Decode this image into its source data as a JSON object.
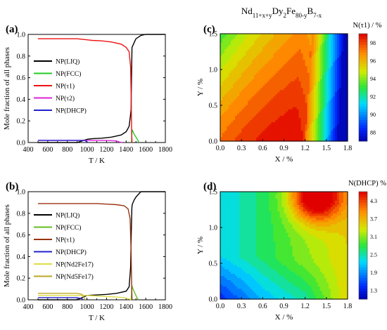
{
  "figure": {
    "title_base": "Nd",
    "title_sub1": "11+x+y",
    "title_mid1": "Dy",
    "title_sub2": "2",
    "title_mid2": "Fe",
    "title_sub3": "80-y",
    "title_mid3": "B",
    "title_sub4": "7-x"
  },
  "colors": {
    "LIQ": "#000000",
    "FCC": "#22cc22",
    "tau1_a": "#ee1111",
    "tau2": "#dd22dd",
    "DHCP": "#2222cc",
    "FCC_b": "#66bb22",
    "tau1_b": "#993311",
    "Nd2Fe17": "#dddd44",
    "Nd5Fe17": "#bbaa22"
  },
  "chart_data": [
    {
      "panel": "(a)",
      "type": "line",
      "xlabel": "T / K",
      "ylabel": "Mole fraction of all phases",
      "xlim": [
        400,
        1800
      ],
      "ylim": [
        0,
        1.0
      ],
      "xticks": [
        "400",
        "600",
        "800",
        "1000",
        "1200",
        "1400",
        "1600",
        "1800"
      ],
      "yticks": [
        "0.0",
        "0.2",
        "0.4",
        "0.6",
        "0.8",
        "1.0"
      ],
      "legend_position": "center-left",
      "series": [
        {
          "name": "NP(LIQ)",
          "color_key": "LIQ",
          "x": [
            500,
            700,
            900,
            1000,
            1050,
            1150,
            1250,
            1350,
            1400,
            1430,
            1450,
            1455,
            1460,
            1470,
            1480,
            1490,
            1500,
            1550,
            1600,
            1700,
            1800
          ],
          "y": [
            0.0,
            0.0,
            0.0,
            0.03,
            0.035,
            0.04,
            0.05,
            0.07,
            0.1,
            0.15,
            0.3,
            0.6,
            0.88,
            0.9,
            0.92,
            0.94,
            0.96,
            0.99,
            1.0,
            1.0,
            1.0
          ]
        },
        {
          "name": "NP(FCC)",
          "color_key": "FCC",
          "x": [
            1455,
            1460,
            1470,
            1480,
            1500,
            1520,
            1530
          ],
          "y": [
            0.0,
            0.12,
            0.1,
            0.08,
            0.05,
            0.02,
            0.0
          ]
        },
        {
          "name": "NP(τ1)",
          "color_key": "tau1_a",
          "x": [
            500,
            700,
            900,
            1000,
            1050,
            1150,
            1250,
            1350,
            1400,
            1430,
            1445,
            1452,
            1456,
            1460
          ],
          "y": [
            0.96,
            0.96,
            0.96,
            0.95,
            0.945,
            0.94,
            0.93,
            0.91,
            0.88,
            0.84,
            0.7,
            0.4,
            0.1,
            0.0
          ]
        },
        {
          "name": "NP(τ2)",
          "color_key": "tau2",
          "x": [
            500,
            900,
            1000,
            1100,
            1200,
            1300,
            1330,
            1360
          ],
          "y": [
            0.02,
            0.02,
            0.02,
            0.02,
            0.02,
            0.015,
            0.005,
            0.0
          ]
        },
        {
          "name": "NP(DHCP)",
          "color_key": "DHCP",
          "x": [
            500,
            800,
            980,
            1000,
            1010
          ],
          "y": [
            0.02,
            0.02,
            0.02,
            0.005,
            0.0
          ]
        }
      ]
    },
    {
      "panel": "(b)",
      "type": "line",
      "xlabel": "T / K",
      "ylabel": "Mole fraction of all phases",
      "xlim": [
        400,
        1800
      ],
      "ylim": [
        0,
        1.0
      ],
      "xticks": [
        "400",
        "600",
        "800",
        "1000",
        "1200",
        "1400",
        "1600",
        "1800"
      ],
      "yticks": [
        "0.0",
        "0.2",
        "0.4",
        "0.6",
        "0.8",
        "1.0"
      ],
      "legend_position": "center-left",
      "series": [
        {
          "name": "NP(LIQ)",
          "color_key": "LIQ",
          "x": [
            500,
            900,
            950,
            1000,
            1100,
            1200,
            1300,
            1400,
            1430,
            1445,
            1452,
            1458,
            1462,
            1480,
            1500,
            1550,
            1600,
            1800
          ],
          "y": [
            0.0,
            0.0,
            0.02,
            0.04,
            0.045,
            0.05,
            0.06,
            0.08,
            0.12,
            0.3,
            0.6,
            0.85,
            0.88,
            0.92,
            0.95,
            1.0,
            1.0,
            1.0
          ]
        },
        {
          "name": "NP(FCC)",
          "color_key": "FCC_b",
          "x": [
            1452,
            1460,
            1470,
            1490,
            1510,
            1525
          ],
          "y": [
            0.0,
            0.13,
            0.1,
            0.06,
            0.02,
            0.0
          ]
        },
        {
          "name": "NP(τ1)",
          "color_key": "tau1_b",
          "x": [
            500,
            900,
            1000,
            1100,
            1200,
            1300,
            1380,
            1420,
            1440,
            1450,
            1456,
            1460
          ],
          "y": [
            0.89,
            0.89,
            0.89,
            0.89,
            0.885,
            0.88,
            0.87,
            0.84,
            0.75,
            0.45,
            0.15,
            0.0
          ]
        },
        {
          "name": "NP(DHCP)",
          "color_key": "DHCP",
          "x": [
            500,
            900,
            950,
            960
          ],
          "y": [
            0.02,
            0.02,
            0.01,
            0.0
          ]
        },
        {
          "name": "NP(Nd2Fe17)",
          "color_key": "Nd2Fe17",
          "x": [
            500,
            900,
            1000,
            1100,
            1200,
            1300,
            1380,
            1420,
            1440,
            1450
          ],
          "y": [
            0.04,
            0.04,
            0.04,
            0.035,
            0.03,
            0.025,
            0.02,
            0.01,
            0.005,
            0.0
          ]
        },
        {
          "name": "NP(Nd5Fe17)",
          "color_key": "Nd5Fe17",
          "x": [
            500,
            900,
            950,
            970,
            980
          ],
          "y": [
            0.06,
            0.06,
            0.05,
            0.02,
            0.0
          ]
        }
      ]
    },
    {
      "panel": "(c)",
      "type": "heatmap",
      "xlabel": "X / %",
      "ylabel": "Y / %",
      "colorbar_title": "N(τ1) / %",
      "xlim": [
        0,
        1.8
      ],
      "ylim": [
        0,
        1.5
      ],
      "xticks": [
        "0.0",
        "0.3",
        "0.6",
        "0.9",
        "1.2",
        "1.5",
        "1.8"
      ],
      "yticks": [
        "0.0",
        "0.5",
        "1.0",
        "1.5"
      ],
      "colorbar_range": [
        88,
        98
      ],
      "colorbar_ticks": [
        "88",
        "90",
        "92",
        "94",
        "96",
        "98"
      ]
    },
    {
      "panel": "(d)",
      "type": "heatmap",
      "xlabel": "X / %",
      "ylabel": "Y / %",
      "colorbar_title": "N(DHCP) %",
      "xlim": [
        0,
        1.8
      ],
      "ylim": [
        0,
        1.5
      ],
      "xticks": [
        "0.0",
        "0.3",
        "0.6",
        "0.9",
        "1.2",
        "1.5",
        "1.8"
      ],
      "yticks": [
        "0.0",
        "0.5",
        "1.0",
        "1.5"
      ],
      "colorbar_range": [
        1.3,
        4.3
      ],
      "colorbar_ticks": [
        "1.3",
        "1.9",
        "2.5",
        "3.1",
        "3.7",
        "4.3"
      ]
    }
  ]
}
